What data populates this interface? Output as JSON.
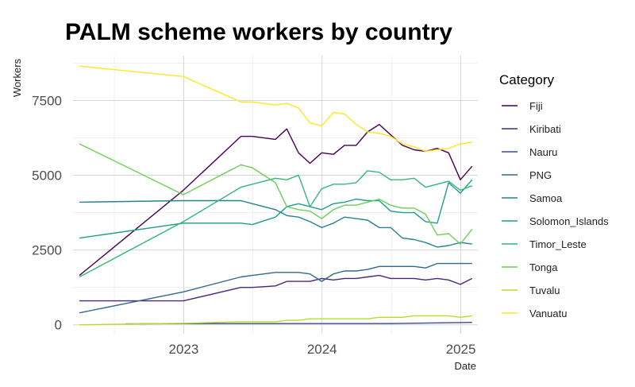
{
  "chart_data": {
    "type": "line",
    "title": "PALM scheme workers by country",
    "xlabel": "Date",
    "ylabel": "Workers",
    "x_type": "date",
    "xlim": [
      "2022-03-15",
      "2025-02-15"
    ],
    "ylim": [
      -300,
      9000
    ],
    "x_ticks": [
      {
        "value": "2023-01-01",
        "label": "2023"
      },
      {
        "value": "2024-01-01",
        "label": "2024"
      },
      {
        "value": "2025-01-01",
        "label": "2025"
      }
    ],
    "x_minor_ticks": [
      "2022-07-02",
      "2023-07-02",
      "2024-07-02"
    ],
    "y_ticks": [
      {
        "value": 0,
        "label": "0"
      },
      {
        "value": 2500,
        "label": "2500"
      },
      {
        "value": 5000,
        "label": "5000"
      },
      {
        "value": 7500,
        "label": "7500"
      }
    ],
    "y_minor_ticks": [
      1250,
      3750,
      6250,
      8750
    ],
    "grid": true,
    "legend": {
      "title": "Category",
      "position": "right"
    },
    "series": [
      {
        "name": "Fiji",
        "color": "#440154",
        "x": [
          "2022-04-01",
          "2022-12-31",
          "2023-06-01",
          "2023-07-01",
          "2023-08-31",
          "2023-09-30",
          "2023-10-31",
          "2023-11-30",
          "2023-12-31",
          "2024-01-31",
          "2024-02-29",
          "2024-03-31",
          "2024-04-30",
          "2024-05-31",
          "2024-06-30",
          "2024-07-31",
          "2024-08-31",
          "2024-09-30",
          "2024-10-31",
          "2024-11-30",
          "2024-12-31",
          "2025-01-31"
        ],
        "values": [
          1650,
          4500,
          6300,
          6300,
          6200,
          6550,
          5750,
          5400,
          5750,
          5700,
          6000,
          6000,
          6450,
          6700,
          6350,
          6000,
          5850,
          5800,
          5900,
          5750,
          4850,
          5300
        ]
      },
      {
        "name": "Kiribati",
        "color": "#482878",
        "x": [
          "2022-04-01",
          "2022-12-31",
          "2023-06-01",
          "2023-07-01",
          "2023-08-31",
          "2023-09-30",
          "2023-10-31",
          "2023-11-30",
          "2023-12-31",
          "2024-01-31",
          "2024-02-29",
          "2024-03-31",
          "2024-04-30",
          "2024-05-31",
          "2024-06-30",
          "2024-07-31",
          "2024-08-31",
          "2024-09-30",
          "2024-10-31",
          "2024-11-30",
          "2024-12-31",
          "2025-01-31"
        ],
        "values": [
          800,
          800,
          1250,
          1250,
          1300,
          1450,
          1450,
          1450,
          1550,
          1500,
          1550,
          1550,
          1600,
          1650,
          1550,
          1550,
          1550,
          1500,
          1550,
          1500,
          1350,
          1550
        ]
      },
      {
        "name": "Nauru",
        "color": "#3e4a89",
        "x": [
          "2022-08-01",
          "2022-12-31",
          "2023-06-01",
          "2023-12-31",
          "2024-06-30",
          "2025-01-31"
        ],
        "values": [
          30,
          40,
          40,
          40,
          40,
          80
        ]
      },
      {
        "name": "PNG",
        "color": "#31688e",
        "x": [
          "2022-04-01",
          "2022-12-31",
          "2023-06-01",
          "2023-07-01",
          "2023-08-31",
          "2023-09-30",
          "2023-10-31",
          "2023-11-30",
          "2023-12-31",
          "2024-01-31",
          "2024-02-29",
          "2024-03-31",
          "2024-04-30",
          "2024-05-31",
          "2024-06-30",
          "2024-07-31",
          "2024-08-31",
          "2024-09-30",
          "2024-10-31",
          "2024-11-30",
          "2024-12-31",
          "2025-01-31"
        ],
        "values": [
          400,
          1100,
          1600,
          1650,
          1750,
          1750,
          1750,
          1700,
          1450,
          1700,
          1800,
          1800,
          1850,
          1950,
          1950,
          1950,
          1950,
          1900,
          2050,
          2050,
          2050,
          2050
        ]
      },
      {
        "name": "Samoa",
        "color": "#26828e",
        "x": [
          "2022-04-01",
          "2022-12-31",
          "2023-06-01",
          "2023-07-01",
          "2023-08-31",
          "2023-09-30",
          "2023-10-31",
          "2023-11-30",
          "2023-12-31",
          "2024-01-31",
          "2024-02-29",
          "2024-03-31",
          "2024-04-30",
          "2024-05-31",
          "2024-06-30",
          "2024-07-31",
          "2024-08-31",
          "2024-09-30",
          "2024-10-31",
          "2024-11-30",
          "2024-12-31",
          "2025-01-31"
        ],
        "values": [
          4100,
          4150,
          4150,
          4050,
          3850,
          3650,
          3600,
          3450,
          3250,
          3400,
          3600,
          3550,
          3500,
          3250,
          3250,
          2900,
          2850,
          2750,
          2600,
          2650,
          2750,
          2700
        ]
      },
      {
        "name": "Solomon_Islands",
        "color": "#1f9e89",
        "x": [
          "2022-04-01",
          "2022-12-31",
          "2023-06-01",
          "2023-07-01",
          "2023-08-31",
          "2023-09-30",
          "2023-10-31",
          "2023-11-30",
          "2023-12-31",
          "2024-01-31",
          "2024-02-29",
          "2024-03-31",
          "2024-04-30",
          "2024-05-31",
          "2024-06-30",
          "2024-07-31",
          "2024-08-31",
          "2024-09-30",
          "2024-10-31",
          "2024-11-30",
          "2024-12-31",
          "2025-01-31"
        ],
        "values": [
          2900,
          3400,
          3400,
          3350,
          3600,
          3950,
          4050,
          3950,
          3850,
          4050,
          4100,
          4200,
          4150,
          4150,
          3800,
          3750,
          3750,
          3450,
          3400,
          4750,
          4400,
          4850
        ]
      },
      {
        "name": "Timor_Leste",
        "color": "#35b779",
        "x": [
          "2022-04-01",
          "2022-12-31",
          "2023-06-01",
          "2023-07-01",
          "2023-08-31",
          "2023-09-30",
          "2023-10-31",
          "2023-11-30",
          "2023-12-31",
          "2024-01-31",
          "2024-02-29",
          "2024-03-31",
          "2024-04-30",
          "2024-05-31",
          "2024-06-30",
          "2024-07-31",
          "2024-08-31",
          "2024-09-30",
          "2024-10-31",
          "2024-11-30",
          "2024-12-31",
          "2025-01-31"
        ],
        "values": [
          1600,
          3450,
          4600,
          4700,
          4900,
          4850,
          5000,
          3950,
          4550,
          4700,
          4700,
          4750,
          5150,
          5100,
          4850,
          4850,
          4900,
          4600,
          4700,
          4800,
          4500,
          4650
        ]
      },
      {
        "name": "Tonga",
        "color": "#6ece58",
        "x": [
          "2022-04-01",
          "2022-12-31",
          "2023-06-01",
          "2023-07-01",
          "2023-08-31",
          "2023-09-30",
          "2023-10-31",
          "2023-11-30",
          "2023-12-31",
          "2024-01-31",
          "2024-02-29",
          "2024-03-31",
          "2024-04-30",
          "2024-05-31",
          "2024-06-30",
          "2024-07-31",
          "2024-08-31",
          "2024-09-30",
          "2024-10-31",
          "2024-11-30",
          "2024-12-31",
          "2025-01-31"
        ],
        "values": [
          6050,
          4350,
          5350,
          5250,
          4750,
          3950,
          3850,
          3800,
          3550,
          3850,
          4000,
          4000,
          4100,
          4200,
          4000,
          3900,
          3900,
          3700,
          3000,
          3050,
          2700,
          3200
        ]
      },
      {
        "name": "Tuvalu",
        "color": "#b5de2b",
        "x": [
          "2022-04-01",
          "2022-12-31",
          "2023-06-01",
          "2023-07-01",
          "2023-08-31",
          "2023-09-30",
          "2023-10-31",
          "2023-11-30",
          "2023-12-31",
          "2024-01-31",
          "2024-02-29",
          "2024-03-31",
          "2024-04-30",
          "2024-05-31",
          "2024-06-30",
          "2024-07-31",
          "2024-08-31",
          "2024-09-30",
          "2024-10-31",
          "2024-11-30",
          "2024-12-31",
          "2025-01-31"
        ],
        "values": [
          0,
          50,
          100,
          100,
          100,
          150,
          150,
          200,
          200,
          200,
          200,
          200,
          200,
          250,
          250,
          250,
          300,
          300,
          300,
          300,
          250,
          300
        ]
      },
      {
        "name": "Vanuatu",
        "color": "#fde725",
        "x": [
          "2022-04-01",
          "2022-12-31",
          "2023-06-01",
          "2023-07-01",
          "2023-08-31",
          "2023-09-30",
          "2023-10-31",
          "2023-11-30",
          "2023-12-31",
          "2024-01-31",
          "2024-02-29",
          "2024-03-31",
          "2024-04-30",
          "2024-05-31",
          "2024-06-30",
          "2024-07-31",
          "2024-08-31",
          "2024-09-30",
          "2024-10-31",
          "2024-11-30",
          "2024-12-31",
          "2025-01-31"
        ],
        "values": [
          8650,
          8300,
          7450,
          7450,
          7350,
          7400,
          7250,
          6750,
          6650,
          7100,
          7050,
          6700,
          6450,
          6400,
          6300,
          6050,
          5950,
          5800,
          5850,
          5900,
          6050,
          6100
        ]
      }
    ]
  }
}
